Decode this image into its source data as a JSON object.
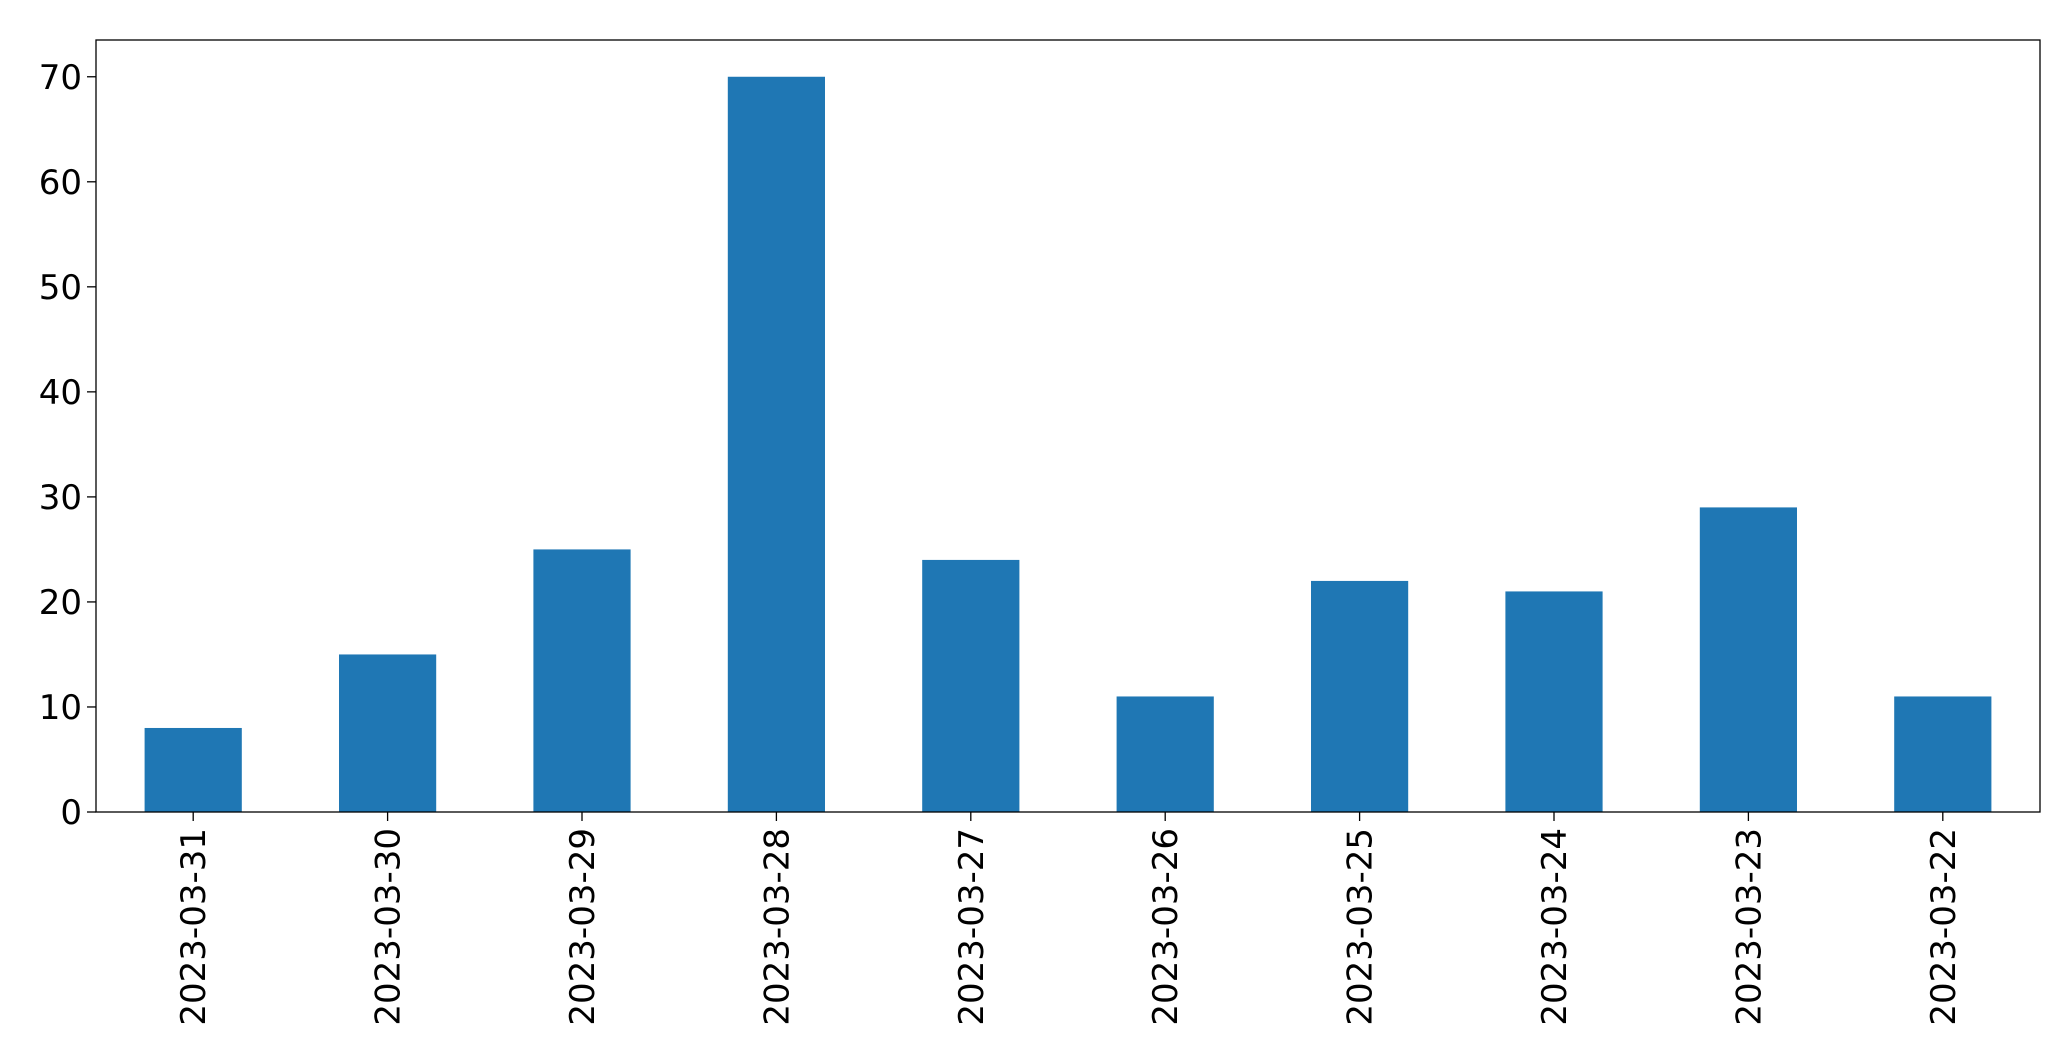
{
  "chart_data": {
    "type": "bar",
    "categories": [
      "2023-03-31",
      "2023-03-30",
      "2023-03-29",
      "2023-03-28",
      "2023-03-27",
      "2023-03-26",
      "2023-03-25",
      "2023-03-24",
      "2023-03-23",
      "2023-03-22"
    ],
    "values": [
      8,
      15,
      25,
      70,
      24,
      11,
      22,
      21,
      29,
      11
    ],
    "color": "#1f77b4",
    "ylim": [
      0,
      73.5
    ],
    "yticks": [
      0,
      10,
      20,
      30,
      40,
      50,
      60,
      70
    ],
    "grid": false
  }
}
